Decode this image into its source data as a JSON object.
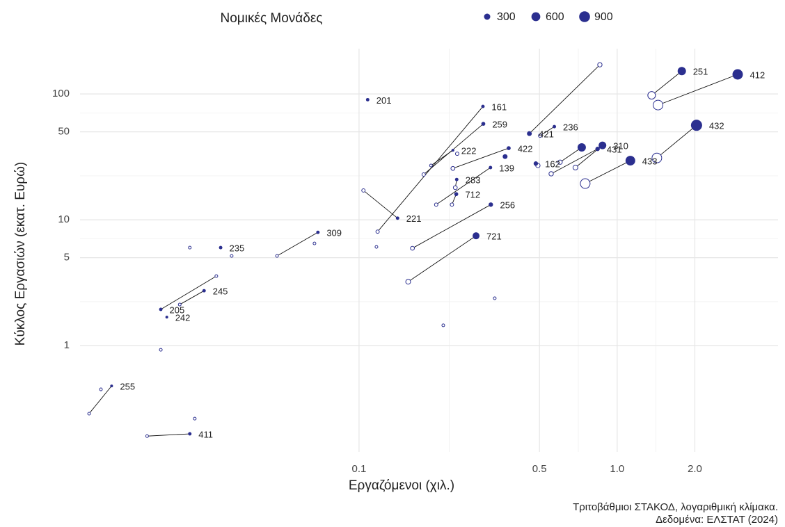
{
  "chart_data": {
    "type": "scatter",
    "size_legend_title": "Νομικές Μονάδες",
    "size_legend": [
      300,
      600,
      900
    ],
    "x_label": "Εργαζόμενοι (χιλ.)",
    "y_label": "Κύκλος Εργασιών (εκατ. Ευρώ)",
    "caption": [
      "Τριτοβάθμιοι ΣΤΑΚΟΔ, λογαριθμική κλίμακα.",
      "Δεδομένα: ΕΛΣΤΑΤ (2024)"
    ],
    "log_x": true,
    "log_y": true,
    "grid": true,
    "color": "#2b2f8f",
    "xlim": [
      0.0083,
      4.2
    ],
    "ylim": [
      0.143,
      229
    ],
    "xticks": [
      0.1,
      0.5,
      {
        "value": 1,
        "label": "1.0"
      },
      {
        "value": 2,
        "label": "2.0"
      }
    ],
    "yticks": [
      1,
      5,
      10,
      50,
      100
    ],
    "items": [
      {
        "label": "201",
        "x": 0.108,
        "y": 90,
        "size": 90,
        "x_prev": null,
        "y_prev": null,
        "size_prev": null
      },
      {
        "label": "161",
        "x": 0.302,
        "y": 79.6,
        "size": 90,
        "x_prev": 0.118,
        "y_prev": 8.05,
        "size_prev": 90
      },
      {
        "label": "259",
        "x": 0.303,
        "y": 57.9,
        "size": 120,
        "x_prev": 0.178,
        "y_prev": 22.9,
        "size_prev": 90
      },
      {
        "label": "222",
        "x": 0.231,
        "y": 35.7,
        "size": 60,
        "x_prev": 0.19,
        "y_prev": 27,
        "size_prev": 60
      },
      {
        "label": "236",
        "x": 0.571,
        "y": 55,
        "size": 90,
        "x_prev": 0.503,
        "y_prev": 46.6,
        "size_prev": 90
      },
      {
        "label": "421",
        "x": 0.457,
        "y": 48.4,
        "size": 180,
        "x_prev": 0.857,
        "y_prev": 170.6,
        "size_prev": 150
      },
      {
        "label": "422",
        "x": 0.38,
        "y": 37.1,
        "size": 120,
        "x_prev": 0.231,
        "y_prev": 25.6,
        "size_prev": 120
      },
      {
        "label": "139",
        "x": 0.323,
        "y": 26,
        "size": 90,
        "x_prev": 0.199,
        "y_prev": 13.2,
        "size_prev": 90
      },
      {
        "label": "283",
        "x": 0.239,
        "y": 20.9,
        "size": 90,
        "x_prev": 0.236,
        "y_prev": 18,
        "size_prev": 120
      },
      {
        "label": "712",
        "x": 0.238,
        "y": 16,
        "size": 120,
        "x_prev": 0.229,
        "y_prev": 13.2,
        "size_prev": 90
      },
      {
        "label": "256",
        "x": 0.324,
        "y": 13.2,
        "size": 150,
        "x_prev": 0.161,
        "y_prev": 5.94,
        "size_prev": 120
      },
      {
        "label": "721",
        "x": 0.284,
        "y": 7.46,
        "size": 370,
        "x_prev": 0.155,
        "y_prev": 3.22,
        "size_prev": 180
      },
      {
        "label": "221",
        "x": 0.141,
        "y": 10.3,
        "size": 90,
        "x_prev": 0.104,
        "y_prev": 17.1,
        "size_prev": 90
      },
      {
        "label": "162",
        "x": 0.484,
        "y": 28,
        "size": 150,
        "x_prev": 0.493,
        "y_prev": 27,
        "size_prev": 150
      },
      {
        "label": "310",
        "x": 0.877,
        "y": 39,
        "size": 450,
        "x_prev": 0.689,
        "y_prev": 26,
        "size_prev": 180
      },
      {
        "label": "431",
        "x": 0.84,
        "y": 36.6,
        "size": 150,
        "x_prev": 0.555,
        "y_prev": 23.2,
        "size_prev": 150
      },
      {
        "label": "433",
        "x": 1.125,
        "y": 29.5,
        "size": 720,
        "x_prev": 0.752,
        "y_prev": 19.4,
        "size_prev": 720
      },
      {
        "label": "432",
        "x": 2.03,
        "y": 56.4,
        "size": 950,
        "x_prev": 1.425,
        "y_prev": 31,
        "size_prev": 720
      },
      {
        "label": "251",
        "x": 1.78,
        "y": 152,
        "size": 530,
        "x_prev": 1.36,
        "y_prev": 97.5,
        "size_prev": 450
      },
      {
        "label": "412",
        "x": 2.93,
        "y": 143,
        "size": 830,
        "x_prev": 1.44,
        "y_prev": 81.6,
        "size_prev": 720
      },
      {
        "label": "309",
        "x": 0.0693,
        "y": 7.95,
        "size": 90,
        "x_prev": 0.0481,
        "y_prev": 5.16,
        "size_prev": 60
      },
      {
        "label": "235",
        "x": 0.0291,
        "y": 6.01,
        "size": 90,
        "x_prev": null,
        "y_prev": null,
        "size_prev": null
      },
      {
        "label": "245",
        "x": 0.0251,
        "y": 2.73,
        "size": 90,
        "x_prev": 0.0202,
        "y_prev": 2.12,
        "size_prev": 60
      },
      {
        "label": "205",
        "x": 0.01706,
        "y": 1.94,
        "size": 90,
        "x_prev": 0.028,
        "y_prev": 3.57,
        "size_prev": 60
      },
      {
        "label": "242",
        "x": 0.018,
        "y": 1.685,
        "size": 60,
        "x_prev": null,
        "y_prev": null,
        "size_prev": null
      },
      {
        "label": "255",
        "x": 0.011,
        "y": 0.478,
        "size": 60,
        "x_prev": 0.009,
        "y_prev": 0.288,
        "size_prev": 60
      },
      {
        "label": "411",
        "x": 0.0221,
        "y": 0.199,
        "size": 90,
        "x_prev": 0.0151,
        "y_prev": 0.191,
        "size_prev": 60
      },
      {
        "label": null,
        "x": 0.729,
        "y": 37.6,
        "size": 530,
        "x_prev": 0.601,
        "y_prev": 28.7,
        "size_prev": 150
      },
      {
        "label": null,
        "x": 0.368,
        "y": 31.8,
        "size": 180,
        "x_prev": null,
        "y_prev": null,
        "size_prev": null
      },
      {
        "label": null,
        "x": null,
        "y": null,
        "size": null,
        "x_prev": 0.0221,
        "y_prev": 6.01,
        "size_prev": 60
      },
      {
        "label": null,
        "x": null,
        "y": null,
        "size": null,
        "x_prev": 0.0321,
        "y_prev": 5.16,
        "size_prev": 60
      },
      {
        "label": null,
        "x": null,
        "y": null,
        "size": null,
        "x_prev": 0.0672,
        "y_prev": 6.49,
        "size_prev": 60
      },
      {
        "label": null,
        "x": null,
        "y": null,
        "size": null,
        "x_prev": 0.1168,
        "y_prev": 6.09,
        "size_prev": 60
      },
      {
        "label": null,
        "x": null,
        "y": null,
        "size": null,
        "x_prev": 0.01706,
        "y_prev": 0.927,
        "size_prev": 60
      },
      {
        "label": null,
        "x": null,
        "y": null,
        "size": null,
        "x_prev": 0.0231,
        "y_prev": 0.263,
        "size_prev": 60
      },
      {
        "label": null,
        "x": null,
        "y": null,
        "size": null,
        "x_prev": 0.01,
        "y_prev": 0.449,
        "size_prev": 60
      },
      {
        "label": null,
        "x": null,
        "y": null,
        "size": null,
        "x_prev": 0.3355,
        "y_prev": 2.38,
        "size_prev": 60
      },
      {
        "label": null,
        "x": null,
        "y": null,
        "size": null,
        "x_prev": 0.212,
        "y_prev": 1.45,
        "size_prev": 60
      },
      {
        "label": null,
        "x": null,
        "y": null,
        "size": null,
        "x_prev": 0.24,
        "y_prev": 33.5,
        "size_prev": 90
      }
    ]
  }
}
